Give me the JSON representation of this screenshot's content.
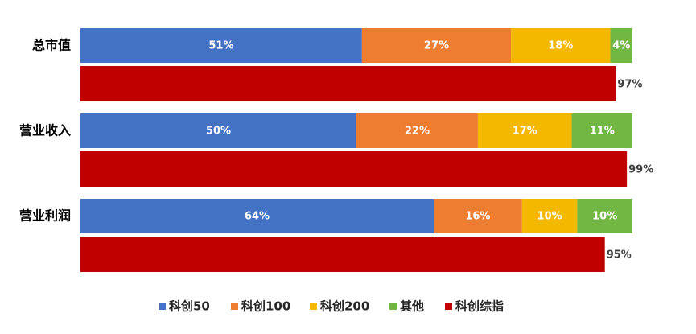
{
  "chart_data": {
    "type": "bar",
    "orientation": "horizontal",
    "categories": [
      "总市值",
      "营业收入",
      "营业利润"
    ],
    "xlim": [
      0,
      100
    ],
    "legend": "bottom",
    "series": [
      {
        "name": "科创50",
        "color": "#4472c4",
        "stacked": true,
        "values": [
          51,
          50,
          64
        ],
        "value_labels": [
          "51%",
          "50%",
          "64%"
        ]
      },
      {
        "name": "科创100",
        "color": "#ed7d31",
        "stacked": true,
        "values": [
          27,
          22,
          16
        ],
        "value_labels": [
          "27%",
          "22%",
          "16%"
        ]
      },
      {
        "name": "科创200",
        "color": "#f5b800",
        "stacked": true,
        "values": [
          18,
          17,
          10
        ],
        "value_labels": [
          "18%",
          "17%",
          "10%"
        ]
      },
      {
        "name": "其他",
        "color": "#72b744",
        "stacked": true,
        "values": [
          4,
          11,
          10
        ],
        "value_labels": [
          "4%",
          "11%",
          "10%"
        ]
      },
      {
        "name": "科创综指",
        "color": "#c00000",
        "stacked": false,
        "values": [
          97,
          99,
          95
        ],
        "value_labels": [
          "97%",
          "99%",
          "95%"
        ]
      }
    ]
  }
}
